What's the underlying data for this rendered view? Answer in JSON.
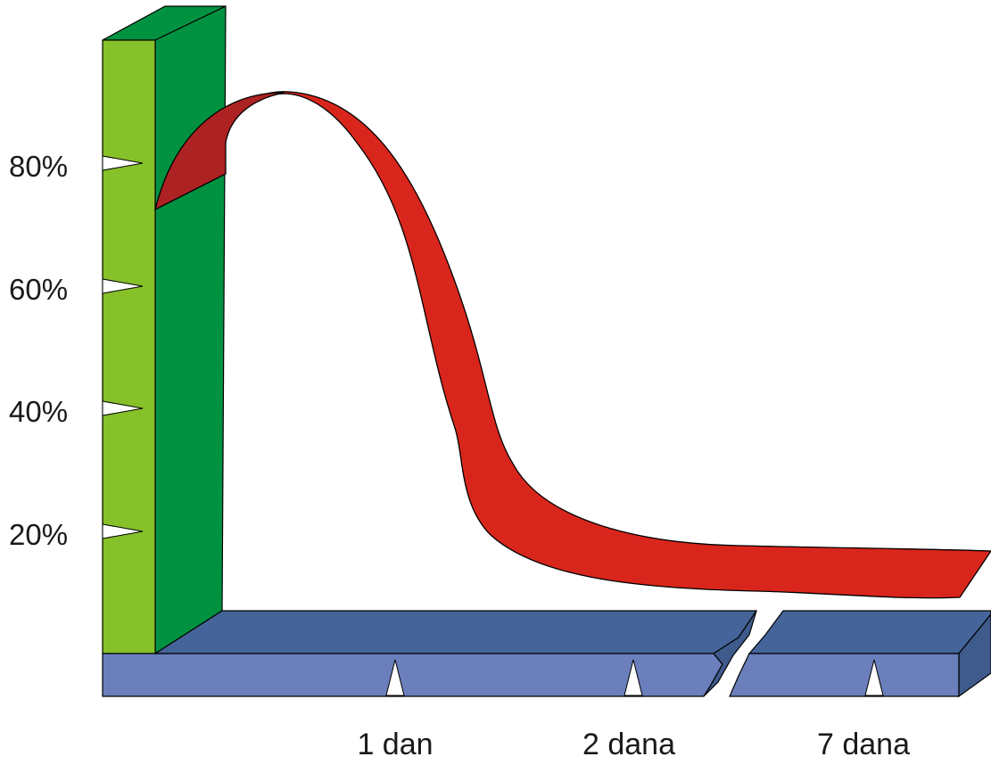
{
  "chart_data": {
    "type": "line",
    "title": "",
    "xlabel": "",
    "ylabel": "",
    "ylim": [
      0,
      100
    ],
    "y_ticks": [
      {
        "label": "80%",
        "value": 80
      },
      {
        "label": "60%",
        "value": 60
      },
      {
        "label": "40%",
        "value": 40
      },
      {
        "label": "20%",
        "value": 20
      }
    ],
    "x_ticks": [
      {
        "label": "1 dan"
      },
      {
        "label": "2 dana"
      },
      {
        "label": "7 dana"
      }
    ],
    "axis_break": "between 2 dana and 7 dana",
    "style": "3d-ribbon",
    "colors": {
      "y_axis_front": "#86c12a",
      "y_axis_side": "#009240",
      "x_axis_top": "#45649a",
      "x_axis_front": "#6a7fbb",
      "x_axis_end": "#3e5b8c",
      "ribbon": "#d9261c",
      "ribbon_underside": "#ad2222",
      "tick_marker": "#ffffff"
    }
  }
}
